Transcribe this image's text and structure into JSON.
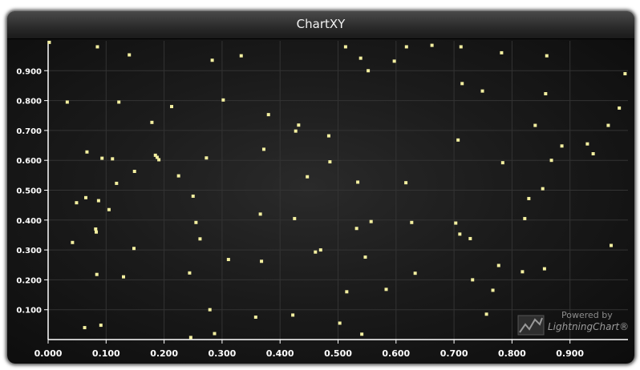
{
  "window": {
    "title": "ChartXY"
  },
  "watermark": {
    "line1": "Powered by",
    "line2": "LightningChart®"
  },
  "colors": {
    "point": "#f4f0a0",
    "axis": "#ffffff",
    "grid": "#333333",
    "tick_label": "#ffffff",
    "background": "#141414"
  },
  "chart_data": {
    "type": "scatter",
    "title": "ChartXY",
    "xlabel": "",
    "ylabel": "",
    "xlim": [
      0,
      1
    ],
    "ylim": [
      0,
      1
    ],
    "grid": true,
    "x_ticks": [
      "0.000",
      "0.100",
      "0.200",
      "0.300",
      "0.400",
      "0.500",
      "0.600",
      "0.700",
      "0.800",
      "0.900"
    ],
    "y_ticks": [
      "0.100",
      "0.200",
      "0.300",
      "0.400",
      "0.500",
      "0.600",
      "0.700",
      "0.800",
      "0.900"
    ],
    "series": [
      {
        "marker": "square",
        "points": [
          [
            0.002,
            0.995
          ],
          [
            0.033,
            0.795
          ],
          [
            0.042,
            0.325
          ],
          [
            0.049,
            0.458
          ],
          [
            0.063,
            0.04
          ],
          [
            0.065,
            0.475
          ],
          [
            0.067,
            0.628
          ],
          [
            0.082,
            0.37
          ],
          [
            0.083,
            0.36
          ],
          [
            0.084,
            0.218
          ],
          [
            0.085,
            0.98
          ],
          [
            0.087,
            0.465
          ],
          [
            0.091,
            0.048
          ],
          [
            0.093,
            0.607
          ],
          [
            0.105,
            0.435
          ],
          [
            0.111,
            0.605
          ],
          [
            0.118,
            0.523
          ],
          [
            0.122,
            0.795
          ],
          [
            0.13,
            0.21
          ],
          [
            0.14,
            0.953
          ],
          [
            0.148,
            0.305
          ],
          [
            0.149,
            0.563
          ],
          [
            0.179,
            0.727
          ],
          [
            0.185,
            0.617
          ],
          [
            0.188,
            0.61
          ],
          [
            0.191,
            0.602
          ],
          [
            0.213,
            0.78
          ],
          [
            0.225,
            0.548
          ],
          [
            0.244,
            0.223
          ],
          [
            0.246,
            0.007
          ],
          [
            0.25,
            0.48
          ],
          [
            0.255,
            0.392
          ],
          [
            0.262,
            0.337
          ],
          [
            0.273,
            0.608
          ],
          [
            0.279,
            0.1
          ],
          [
            0.283,
            0.935
          ],
          [
            0.287,
            0.02
          ],
          [
            0.302,
            0.802
          ],
          [
            0.311,
            0.268
          ],
          [
            0.333,
            0.95
          ],
          [
            0.358,
            0.075
          ],
          [
            0.366,
            0.42
          ],
          [
            0.368,
            0.262
          ],
          [
            0.372,
            0.637
          ],
          [
            0.38,
            0.753
          ],
          [
            0.422,
            0.082
          ],
          [
            0.425,
            0.405
          ],
          [
            0.427,
            0.698
          ],
          [
            0.432,
            0.718
          ],
          [
            0.447,
            0.545
          ],
          [
            0.461,
            0.293
          ],
          [
            0.47,
            0.3
          ],
          [
            0.484,
            0.682
          ],
          [
            0.486,
            0.595
          ],
          [
            0.503,
            0.055
          ],
          [
            0.513,
            0.98
          ],
          [
            0.515,
            0.16
          ],
          [
            0.532,
            0.372
          ],
          [
            0.534,
            0.527
          ],
          [
            0.539,
            0.942
          ],
          [
            0.541,
            0.018
          ],
          [
            0.547,
            0.276
          ],
          [
            0.552,
            0.9
          ],
          [
            0.557,
            0.395
          ],
          [
            0.583,
            0.168
          ],
          [
            0.597,
            0.932
          ],
          [
            0.617,
            0.525
          ],
          [
            0.618,
            0.98
          ],
          [
            0.627,
            0.392
          ],
          [
            0.633,
            0.222
          ],
          [
            0.662,
            0.985
          ],
          [
            0.703,
            0.39
          ],
          [
            0.707,
            0.668
          ],
          [
            0.71,
            0.353
          ],
          [
            0.712,
            0.98
          ],
          [
            0.714,
            0.857
          ],
          [
            0.728,
            0.338
          ],
          [
            0.732,
            0.2
          ],
          [
            0.749,
            0.832
          ],
          [
            0.756,
            0.085
          ],
          [
            0.767,
            0.165
          ],
          [
            0.777,
            0.248
          ],
          [
            0.782,
            0.96
          ],
          [
            0.784,
            0.592
          ],
          [
            0.818,
            0.227
          ],
          [
            0.822,
            0.405
          ],
          [
            0.829,
            0.472
          ],
          [
            0.84,
            0.717
          ],
          [
            0.853,
            0.505
          ],
          [
            0.856,
            0.237
          ],
          [
            0.858,
            0.823
          ],
          [
            0.86,
            0.95
          ],
          [
            0.868,
            0.6
          ],
          [
            0.886,
            0.648
          ],
          [
            0.93,
            0.655
          ],
          [
            0.94,
            0.622
          ],
          [
            0.966,
            0.717
          ],
          [
            0.971,
            0.315
          ],
          [
            0.985,
            0.775
          ],
          [
            0.995,
            0.89
          ]
        ]
      }
    ]
  }
}
